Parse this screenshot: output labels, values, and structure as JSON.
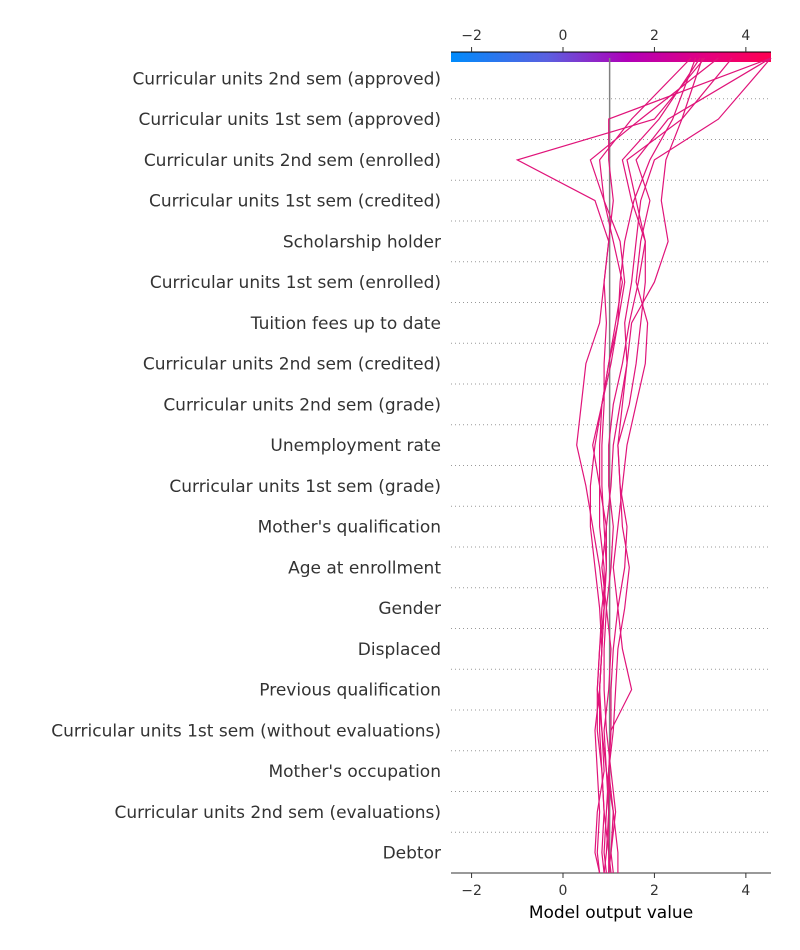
{
  "chart_data": {
    "type": "line",
    "xlabel": "Model output value",
    "xlim": [
      -2.45,
      4.55
    ],
    "xticks": [
      -2,
      0,
      2,
      4
    ],
    "xtick_labels": [
      "−2",
      "0",
      "2",
      "4"
    ],
    "base_value": 1.02,
    "colorbar": {
      "colors": [
        "#008bfb",
        "#ff0051"
      ],
      "ticks": [
        -2,
        0,
        2,
        4
      ]
    },
    "line_color": "#e0147a",
    "grid": "dotted horizontal per feature",
    "features": [
      "Curricular units 2nd sem (approved)",
      "Curricular units 1st sem (approved)",
      "Curricular units 2nd sem (enrolled)",
      "Curricular units 1st sem (credited)",
      "Scholarship holder",
      "Curricular units 1st sem (enrolled)",
      "Tuition fees up to date",
      "Curricular units 2nd sem (credited)",
      "Curricular units 2nd sem (grade)",
      "Unemployment rate",
      "Curricular units 1st sem (grade)",
      "Mother's qualification",
      "Age at enrollment",
      "Gender",
      "Displaced",
      "Previous qualification",
      "Curricular units 1st sem (without evaluations)",
      "Mother's occupation",
      "Curricular units 2nd sem (evaluations)",
      "Debtor"
    ],
    "series": [
      {
        "values": [
          0.8,
          0.7,
          0.75,
          0.9,
          0.85,
          0.8,
          0.85,
          0.9,
          0.95,
          0.9,
          0.85,
          0.85,
          0.9,
          0.9,
          0.95,
          0.9,
          1.0,
          1.1,
          1.0,
          1.0,
          4.55
        ]
      },
      {
        "values": [
          0.95,
          0.9,
          0.95,
          1.0,
          1.1,
          1.15,
          1.2,
          1.35,
          1.45,
          1.3,
          1.25,
          1.2,
          1.3,
          1.4,
          1.35,
          1.5,
          1.6,
          1.7,
          2.0,
          3.4,
          4.55
        ]
      },
      {
        "values": [
          1.1,
          1.05,
          1.1,
          1.0,
          1.05,
          1.5,
          1.3,
          1.2,
          1.1,
          1.2,
          1.3,
          1.4,
          1.6,
          1.8,
          1.85,
          1.6,
          1.7,
          1.9,
          1.6,
          2.3,
          4.55
        ]
      },
      {
        "values": [
          1.2,
          1.2,
          1.1,
          0.95,
          0.9,
          1.0,
          1.05,
          0.95,
          0.85,
          0.95,
          1.05,
          1.1,
          1.25,
          1.4,
          1.5,
          2.0,
          2.3,
          2.15,
          2.25,
          2.6,
          3.7
        ]
      },
      {
        "values": [
          0.8,
          0.75,
          0.8,
          0.75,
          0.7,
          0.8,
          0.85,
          0.8,
          0.7,
          0.6,
          0.6,
          0.7,
          0.85,
          1.0,
          1.15,
          1.3,
          1.1,
          0.9,
          0.6,
          1.7,
          3.4
        ]
      },
      {
        "values": [
          0.9,
          0.85,
          0.9,
          0.85,
          0.75,
          0.75,
          0.8,
          0.9,
          0.8,
          0.65,
          0.5,
          0.3,
          0.4,
          0.5,
          0.8,
          0.9,
          1.0,
          0.7,
          -1.0,
          2.0,
          3.1
        ]
      },
      {
        "values": [
          0.9,
          0.95,
          1.0,
          0.95,
          0.85,
          0.75,
          0.8,
          0.85,
          0.95,
          0.95,
          0.8,
          0.65,
          0.85,
          1.05,
          1.2,
          1.25,
          1.35,
          1.55,
          1.9,
          2.4,
          2.9
        ]
      },
      {
        "values": [
          1.0,
          1.05,
          1.15,
          1.05,
          0.95,
          0.9,
          0.9,
          0.95,
          1.05,
          1.1,
          1.0,
          1.0,
          1.1,
          1.3,
          1.45,
          1.65,
          1.8,
          1.6,
          1.4,
          2.6,
          3.05
        ]
      },
      {
        "values": [
          1.05,
          1.0,
          1.0,
          1.0,
          1.05,
          1.05,
          1.1,
          1.2,
          1.35,
          1.4,
          1.25,
          1.2,
          1.45,
          1.6,
          1.7,
          1.8,
          1.8,
          1.5,
          1.3,
          2.1,
          3.0
        ]
      },
      {
        "values": [
          1.0,
          1.0,
          0.9,
          0.85,
          0.8,
          0.8,
          0.85,
          0.9,
          0.9,
          0.8,
          0.8,
          0.8,
          0.85,
          1.0,
          1.2,
          1.35,
          1.25,
          0.9,
          0.8,
          1.5,
          2.8
        ]
      }
    ]
  }
}
